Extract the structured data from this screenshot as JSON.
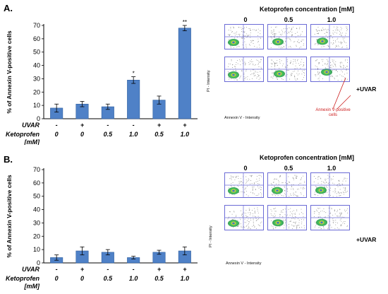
{
  "panels": [
    {
      "letter": "A.",
      "flow_title": "Ketoprofen concentration [mM]",
      "flow_concentrations": [
        "0",
        "0.5",
        "1.0"
      ],
      "flow_side_label": "+UVAR",
      "flow_yaxis": "PI - Intensity",
      "flow_xaxis": "Annexin V - Intensity",
      "flow_annotation": "Annexin V-positive\ncells"
    },
    {
      "letter": "B.",
      "flow_title": "Ketoprofen concentration [mM]",
      "flow_concentrations": [
        "0",
        "0.5",
        "1.0"
      ],
      "flow_side_label": "+UVAR",
      "flow_yaxis": "PI - Intensity",
      "flow_xaxis": "Annexin V - Intensity",
      "flow_annotation": ""
    }
  ],
  "colors": {
    "bar": "#4f81c7",
    "bar_edge": "#2f5f9f",
    "gate": "#6b6bd6",
    "annotation": "#cc1f1f"
  },
  "chart_data": [
    {
      "type": "bar",
      "ylabel": "% of Annexin V-positive cells",
      "ylim": [
        0,
        70
      ],
      "yticks": [
        0,
        10,
        20,
        30,
        40,
        50,
        60,
        70
      ],
      "row_labels": [
        "UVAR",
        "Ketoprofen",
        "[mM]"
      ],
      "uvar": [
        "-",
        "+",
        "-",
        "-",
        "+",
        "+"
      ],
      "ketoprofen": [
        "0",
        "0",
        "0.5",
        "1.0",
        "0.5",
        "1.0"
      ],
      "values": [
        8,
        11,
        9,
        29,
        14,
        68
      ],
      "errors": [
        3,
        2,
        2,
        2.5,
        3,
        2
      ],
      "significance": [
        "",
        "",
        "",
        "*",
        "",
        "**"
      ]
    },
    {
      "type": "bar",
      "ylabel": "% of Annexin V-positive cells",
      "ylim": [
        0,
        70
      ],
      "yticks": [
        0,
        10,
        20,
        30,
        40,
        50,
        60,
        70
      ],
      "row_labels": [
        "UVAR",
        "Ketoprofen",
        "[mM]"
      ],
      "uvar": [
        "-",
        "+",
        "-",
        "-",
        "+",
        "+"
      ],
      "ketoprofen": [
        "0",
        "0",
        "0.5",
        "1.0",
        "0.5",
        "1.0"
      ],
      "values": [
        4,
        9,
        8,
        4,
        8,
        9
      ],
      "errors": [
        2,
        3,
        2,
        1,
        1.5,
        3
      ],
      "significance": [
        "",
        "",
        "",
        "",
        "",
        ""
      ]
    }
  ]
}
